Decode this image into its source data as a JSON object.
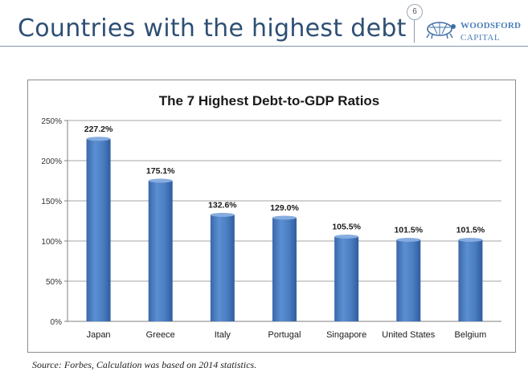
{
  "slide": {
    "title": "Countries with the highest debt",
    "page_number": "6",
    "source": "Source: Forbes, Calculation was based on 2014 statistics."
  },
  "logo": {
    "line1": "WOODSFORD",
    "line2": "CAPITAL",
    "icon": "turtle-icon"
  },
  "colors": {
    "title": "#2e4f74",
    "bar": "#4a7cc0",
    "bar_dark": "#2f5d9e",
    "grid": "#a6a6a6"
  },
  "chart_data": {
    "type": "bar",
    "title": "The 7 Highest Debt-to-GDP Ratios",
    "categories": [
      "Japan",
      "Greece",
      "Italy",
      "Portugal",
      "Singapore",
      "United States",
      "Belgium"
    ],
    "values": [
      227.2,
      175.1,
      132.6,
      129.0,
      105.5,
      101.5,
      101.5
    ],
    "data_labels": [
      "227.2%",
      "175.1%",
      "132.6%",
      "129.0%",
      "105.5%",
      "101.5%",
      "101.5%"
    ],
    "y_ticks": [
      "0%",
      "50%",
      "100%",
      "150%",
      "200%",
      "250%"
    ],
    "y_tick_values": [
      0,
      50,
      100,
      150,
      200,
      250
    ],
    "ylim": [
      0,
      250
    ],
    "xlabel": "",
    "ylabel": "",
    "grid": true
  }
}
